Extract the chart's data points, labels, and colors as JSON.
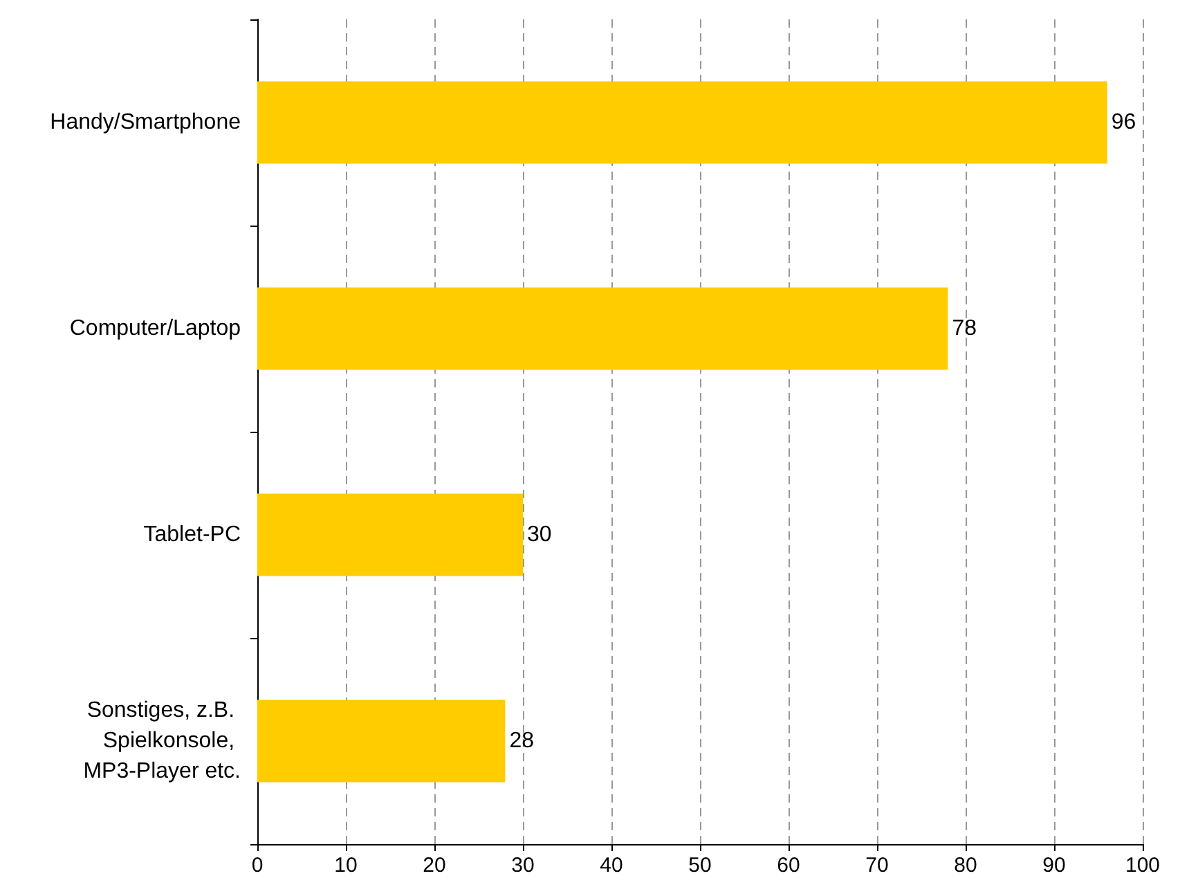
{
  "chart_data": {
    "type": "bar",
    "orientation": "horizontal",
    "categories": [
      "Handy/Smartphone",
      "Computer/Laptop",
      "Tablet-PC",
      "Sonstiges, z.B. Spielkonsole, MP3-Player etc."
    ],
    "values": [
      96,
      78,
      30,
      28
    ],
    "color": "#ffcc00",
    "data_labels": true,
    "xlim": [
      0,
      100
    ],
    "xticks": [
      0,
      10,
      20,
      30,
      40,
      50,
      60,
      70,
      80,
      90,
      100
    ],
    "grid": "x"
  }
}
